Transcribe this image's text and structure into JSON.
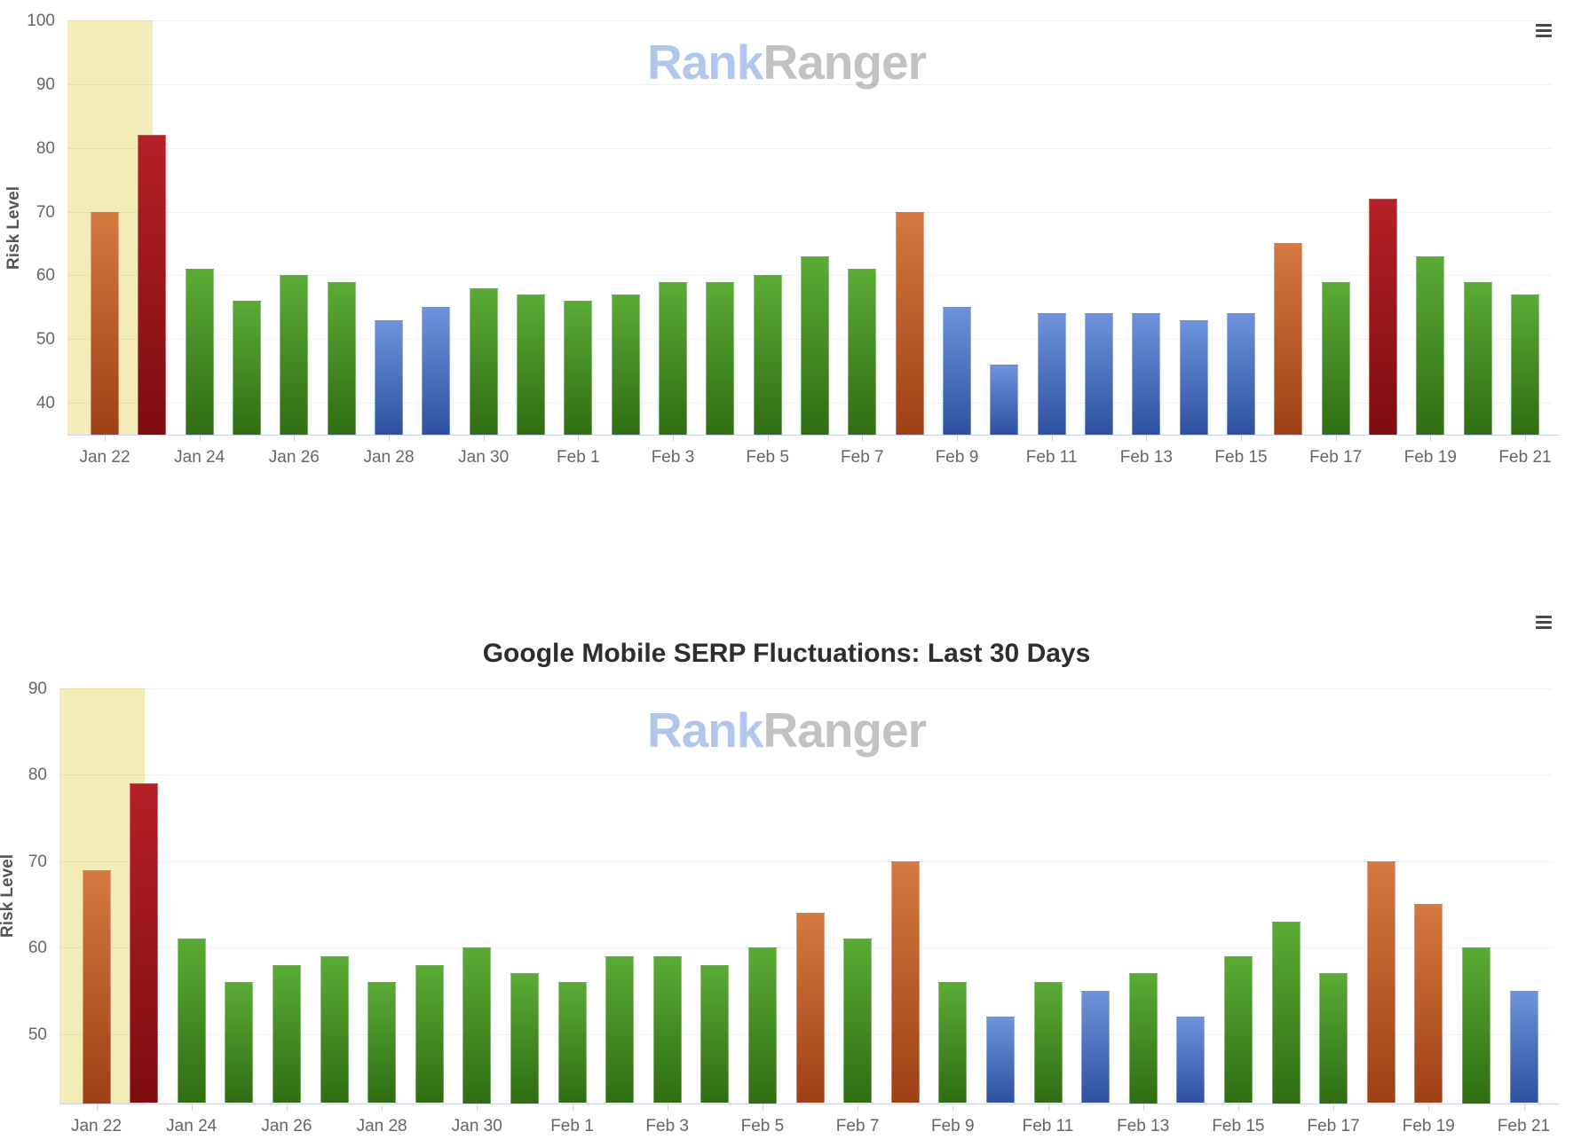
{
  "branding": {
    "watermark_rank": "Rank",
    "watermark_ranger": "Ranger"
  },
  "colors": {
    "bar_green": "#4ca02c",
    "bar_blue": "#5c84d0",
    "bar_orange": "#c9612e",
    "bar_red": "#a81a1f",
    "highlight_band": "#f3ecb7",
    "gridline": "#f0f0f0",
    "axis_line": "#ccd3e6",
    "axis_label": "#666666",
    "title_text": "#2e2e2e",
    "watermark_blue": "#b0c7eb",
    "watermark_gray": "#c2c2c2"
  },
  "chart_data": [
    {
      "type": "bar",
      "title": "",
      "xlabel": "",
      "ylabel": "Risk Level",
      "legend_position": "none",
      "grid": true,
      "ylim": [
        35,
        100
      ],
      "yticks": [
        40,
        50,
        60,
        70,
        80,
        90,
        100
      ],
      "xtick_labels": [
        "Jan 22",
        "Jan 24",
        "Jan 26",
        "Jan 28",
        "Jan 30",
        "Feb 1",
        "Feb 3",
        "Feb 5",
        "Feb 7",
        "Feb 9",
        "Feb 11",
        "Feb 13",
        "Feb 15",
        "Feb 17",
        "Feb 19",
        "Feb 21"
      ],
      "categories": [
        "Jan 22",
        "Jan 23",
        "Jan 24",
        "Jan 25",
        "Jan 26",
        "Jan 27",
        "Jan 28",
        "Jan 29",
        "Jan 30",
        "Jan 31",
        "Feb 1",
        "Feb 2",
        "Feb 3",
        "Feb 4",
        "Feb 5",
        "Feb 6",
        "Feb 7",
        "Feb 8",
        "Feb 9",
        "Feb 10",
        "Feb 11",
        "Feb 12",
        "Feb 13",
        "Feb 14",
        "Feb 15",
        "Feb 16",
        "Feb 17",
        "Feb 18",
        "Feb 19",
        "Feb 20",
        "Feb 21"
      ],
      "values": [
        70,
        82,
        61,
        56,
        60,
        59,
        53,
        55,
        58,
        57,
        56,
        57,
        59,
        59,
        60,
        63,
        61,
        70,
        55,
        46,
        54,
        54,
        54,
        53,
        54,
        65,
        59,
        72,
        63,
        59,
        57
      ],
      "point_colors": [
        "orange",
        "red",
        "green",
        "green",
        "green",
        "green",
        "blue",
        "blue",
        "green",
        "green",
        "green",
        "green",
        "green",
        "green",
        "green",
        "green",
        "green",
        "orange",
        "blue",
        "blue",
        "blue",
        "blue",
        "blue",
        "blue",
        "blue",
        "orange",
        "green",
        "red",
        "green",
        "green",
        "green"
      ],
      "plot_band": {
        "from_category": "Jan 22",
        "to_category": "Jan 23",
        "color": "#f3ecb7"
      }
    },
    {
      "type": "bar",
      "title": "Google Mobile SERP Fluctuations: Last 30 Days",
      "xlabel": "",
      "ylabel": "Risk Level",
      "legend_position": "none",
      "grid": true,
      "ylim": [
        42,
        90
      ],
      "yticks": [
        50,
        60,
        70,
        80,
        90
      ],
      "xtick_labels": [
        "Jan 22",
        "Jan 24",
        "Jan 26",
        "Jan 28",
        "Jan 30",
        "Feb 1",
        "Feb 3",
        "Feb 5",
        "Feb 7",
        "Feb 9",
        "Feb 11",
        "Feb 13",
        "Feb 15",
        "Feb 17",
        "Feb 19",
        "Feb 21"
      ],
      "categories": [
        "Jan 22",
        "Jan 23",
        "Jan 24",
        "Jan 25",
        "Jan 26",
        "Jan 27",
        "Jan 28",
        "Jan 29",
        "Jan 30",
        "Jan 31",
        "Feb 1",
        "Feb 2",
        "Feb 3",
        "Feb 4",
        "Feb 5",
        "Feb 6",
        "Feb 7",
        "Feb 8",
        "Feb 9",
        "Feb 10",
        "Feb 11",
        "Feb 12",
        "Feb 13",
        "Feb 14",
        "Feb 15",
        "Feb 16",
        "Feb 17",
        "Feb 18",
        "Feb 19",
        "Feb 20",
        "Feb 21"
      ],
      "values": [
        69,
        79,
        61,
        56,
        58,
        59,
        56,
        58,
        60,
        57,
        56,
        59,
        59,
        58,
        60,
        64,
        61,
        70,
        56,
        52,
        56,
        55,
        57,
        52,
        59,
        63,
        57,
        70,
        65,
        60,
        55
      ],
      "point_colors": [
        "orange",
        "red",
        "green",
        "green",
        "green",
        "green",
        "green",
        "green",
        "green",
        "green",
        "green",
        "green",
        "green",
        "green",
        "green",
        "orange",
        "green",
        "orange",
        "green",
        "blue",
        "green",
        "blue",
        "green",
        "blue",
        "green",
        "green",
        "green",
        "orange",
        "orange",
        "green",
        "blue"
      ],
      "plot_band": {
        "from_category": "Jan 22",
        "to_category": "Jan 23",
        "color": "#f3ecb7"
      }
    }
  ]
}
